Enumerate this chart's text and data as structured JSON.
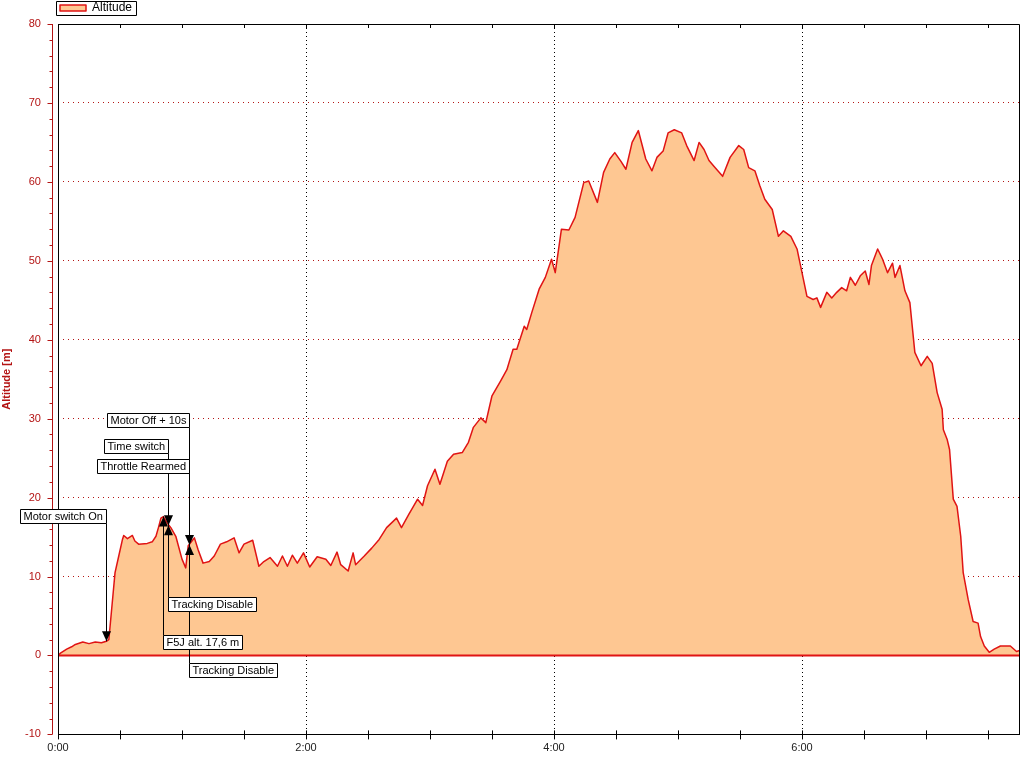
{
  "chart_data": {
    "type": "area",
    "ylabel": "Altitude [m]",
    "x": [
      0,
      0.02,
      0.07,
      0.11,
      0.14,
      0.2,
      0.25,
      0.3,
      0.35,
      0.39,
      0.41,
      0.42,
      0.45,
      0.46,
      0.49,
      0.52,
      0.53,
      0.56,
      0.6,
      0.62,
      0.65,
      0.72,
      0.76,
      0.79,
      0.81,
      0.83,
      0.85,
      0.88,
      0.91,
      0.95,
      1.0,
      1.03,
      1.05,
      1.08,
      1.1,
      1.13,
      1.17,
      1.22,
      1.26,
      1.31,
      1.36,
      1.42,
      1.46,
      1.5,
      1.57,
      1.62,
      1.66,
      1.71,
      1.77,
      1.81,
      1.85,
      1.89,
      1.93,
      1.98,
      2.03,
      2.09,
      2.16,
      2.2,
      2.25,
      2.28,
      2.34,
      2.38,
      2.4,
      2.47,
      2.53,
      2.59,
      2.65,
      2.73,
      2.77,
      2.83,
      2.9,
      2.94,
      2.98,
      3.04,
      3.08,
      3.14,
      3.19,
      3.26,
      3.31,
      3.35,
      3.41,
      3.45,
      3.5,
      3.57,
      3.62,
      3.67,
      3.7,
      3.76,
      3.78,
      3.82,
      3.88,
      3.93,
      3.98,
      4.01,
      4.06,
      4.12,
      4.17,
      4.24,
      4.28,
      4.35,
      4.4,
      4.45,
      4.49,
      4.54,
      4.58,
      4.63,
      4.68,
      4.74,
      4.79,
      4.83,
      4.88,
      4.92,
      4.97,
      5.03,
      5.07,
      5.13,
      5.17,
      5.21,
      5.25,
      5.3,
      5.36,
      5.42,
      5.49,
      5.53,
      5.57,
      5.62,
      5.66,
      5.7,
      5.76,
      5.81,
      5.85,
      5.91,
      5.96,
      6.0,
      6.04,
      6.09,
      6.12,
      6.15,
      6.2,
      6.24,
      6.28,
      6.32,
      6.36,
      6.39,
      6.43,
      6.47,
      6.51,
      6.54,
      6.56,
      6.61,
      6.65,
      6.69,
      6.73,
      6.75,
      6.79,
      6.83,
      6.87,
      6.91,
      6.96,
      7.01,
      7.05,
      7.09,
      7.13,
      7.14,
      7.17,
      7.19,
      7.22,
      7.25,
      7.28,
      7.3,
      7.34,
      7.38,
      7.42,
      7.44,
      7.47,
      7.51,
      7.55,
      7.6,
      7.68,
      7.73,
      7.75
    ],
    "series": [
      {
        "name": "Altitude",
        "color": "#fec792",
        "values": [
          0,
          0.3,
          0.8,
          1.1,
          1.4,
          1.7,
          1.5,
          1.7,
          1.6,
          1.8,
          2.0,
          3.7,
          8.8,
          10.5,
          12.6,
          14.7,
          15.2,
          14.8,
          15.2,
          14.5,
          14.1,
          14.2,
          14.4,
          15.1,
          16.2,
          17.4,
          17.6,
          16.8,
          16.2,
          15.1,
          12.2,
          11.1,
          13.9,
          14.5,
          14.9,
          13.4,
          11.7,
          11.9,
          12.6,
          14.1,
          14.4,
          14.9,
          13.0,
          14.1,
          14.6,
          11.3,
          11.9,
          12.4,
          11.3,
          12.6,
          11.3,
          12.7,
          11.7,
          13.0,
          11.2,
          12.5,
          12.2,
          11.4,
          13.1,
          11.5,
          10.7,
          13.0,
          11.5,
          12.6,
          13.6,
          14.7,
          16.2,
          17.4,
          16.2,
          17.9,
          19.8,
          19.0,
          21.5,
          23.6,
          21.7,
          24.6,
          25.5,
          25.7,
          27.0,
          28.9,
          30.1,
          29.5,
          32.9,
          34.8,
          36.2,
          38.8,
          38.8,
          41.7,
          41.3,
          43.4,
          46.4,
          47.9,
          50.2,
          48.5,
          54.0,
          53.9,
          55.5,
          59.9,
          60.1,
          57.4,
          61.2,
          62.9,
          63.7,
          62.6,
          61.6,
          65.0,
          66.5,
          62.9,
          61.4,
          63.1,
          63.9,
          66.2,
          66.6,
          66.2,
          64.6,
          62.7,
          65.0,
          64.1,
          62.7,
          61.8,
          60.7,
          63.1,
          64.6,
          64.1,
          61.8,
          61.4,
          59.5,
          57.8,
          56.5,
          53.1,
          53.8,
          53.1,
          51.5,
          48.5,
          45.5,
          45.1,
          45.3,
          44.1,
          46.0,
          45.3,
          46.0,
          46.6,
          46.2,
          47.9,
          46.9,
          48.1,
          48.7,
          47.0,
          49.4,
          51.5,
          50.2,
          48.5,
          49.7,
          47.9,
          49.4,
          46.2,
          44.7,
          38.4,
          36.7,
          37.9,
          37.0,
          33.3,
          31.2,
          28.6,
          27.4,
          26.1,
          19.8,
          18.9,
          15.1,
          10.5,
          7.1,
          4.3,
          4.1,
          2.4,
          1.2,
          0.4,
          0.8,
          1.2,
          1.2,
          0.5,
          0.6
        ]
      }
    ],
    "xlim": [
      0,
      7.75
    ],
    "xticks": [
      {
        "value": 0,
        "label": "0:00"
      },
      {
        "value": 0.5,
        "label": null
      },
      {
        "value": 1,
        "label": null
      },
      {
        "value": 1.5,
        "label": null
      },
      {
        "value": 2,
        "label": "2:00"
      },
      {
        "value": 2.5,
        "label": null
      },
      {
        "value": 3,
        "label": null
      },
      {
        "value": 3.5,
        "label": null
      },
      {
        "value": 4,
        "label": "4:00"
      },
      {
        "value": 4.5,
        "label": null
      },
      {
        "value": 5,
        "label": null
      },
      {
        "value": 5.5,
        "label": null
      },
      {
        "value": 6,
        "label": "6:00"
      },
      {
        "value": 6.5,
        "label": null
      },
      {
        "value": 7,
        "label": null
      },
      {
        "value": 7.5,
        "label": null
      }
    ],
    "ylim": [
      -10,
      80
    ],
    "yticks": [
      -10,
      {
        "value": -8,
        "label": null
      },
      {
        "value": -6,
        "label": null
      },
      {
        "value": -4,
        "label": null
      },
      {
        "value": -2,
        "label": null
      },
      0,
      {
        "value": 2,
        "label": null
      },
      {
        "value": 4,
        "label": null
      },
      {
        "value": 6,
        "label": null
      },
      {
        "value": 8,
        "label": null
      },
      10,
      {
        "value": 12,
        "label": null
      },
      {
        "value": 14,
        "label": null
      },
      {
        "value": 16,
        "label": null
      },
      {
        "value": 18,
        "label": null
      },
      20,
      {
        "value": 22,
        "label": null
      },
      {
        "value": 24,
        "label": null
      },
      {
        "value": 26,
        "label": null
      },
      {
        "value": 28,
        "label": null
      },
      30,
      {
        "value": 32,
        "label": null
      },
      {
        "value": 34,
        "label": null
      },
      {
        "value": 36,
        "label": null
      },
      {
        "value": 38,
        "label": null
      },
      40,
      {
        "value": 42,
        "label": null
      },
      {
        "value": 44,
        "label": null
      },
      {
        "value": 46,
        "label": null
      },
      {
        "value": 48,
        "label": null
      },
      50,
      {
        "value": 52,
        "label": null
      },
      {
        "value": 54,
        "label": null
      },
      {
        "value": 56,
        "label": null
      },
      {
        "value": 58,
        "label": null
      },
      60,
      {
        "value": 62,
        "label": null
      },
      {
        "value": 64,
        "label": null
      },
      {
        "value": 66,
        "label": null
      },
      {
        "value": 68,
        "label": null
      },
      70,
      {
        "value": 72,
        "label": null
      },
      {
        "value": 74,
        "label": null
      },
      {
        "value": 76,
        "label": null
      },
      {
        "value": 78,
        "label": null
      },
      80
    ],
    "grid": true,
    "legend": "top left",
    "annotations": [
      {
        "text": "Motor switch On",
        "x": 0.39,
        "y": 1.8
      },
      {
        "text": "Motor Off + 10s",
        "x": 1.06,
        "y": 14
      },
      {
        "text": "Time switch",
        "x": 0.89,
        "y": 16.5
      },
      "Throttle Rearmed",
      {
        "text": "Tracking Disable",
        "x": 0.89,
        "y": 16.5
      },
      {
        "text": "F5J alt. 17,6 m",
        "x": 0.85,
        "y": 17.6
      },
      {
        "text": "Tracking Disable",
        "x": 1.06,
        "y": 14
      }
    ]
  }
}
